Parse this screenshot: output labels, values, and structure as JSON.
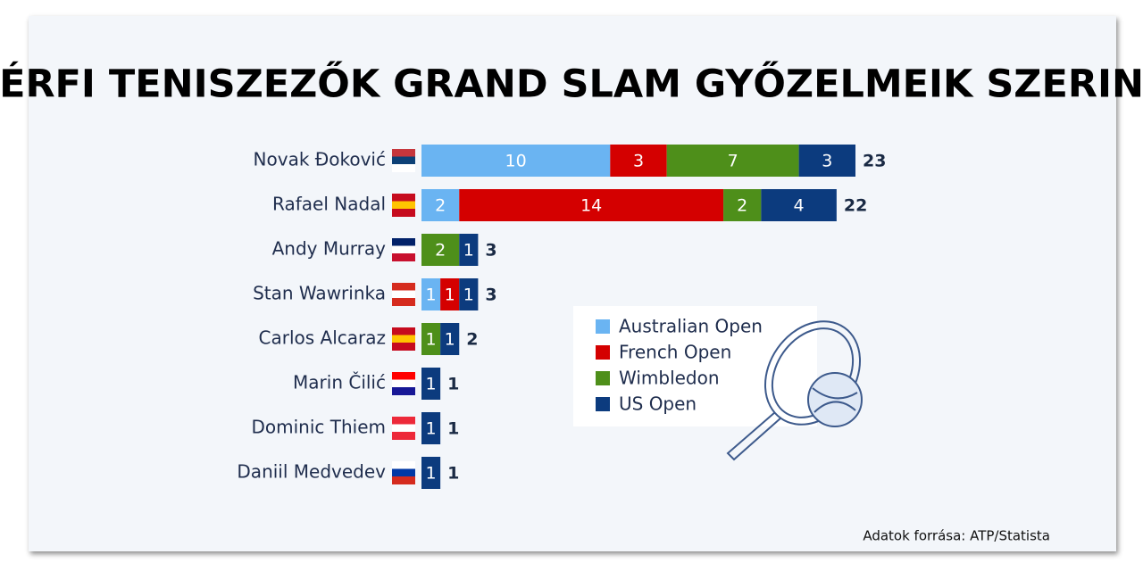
{
  "chart_data": {
    "type": "bar",
    "orientation": "horizontal",
    "stacked": true,
    "title": "FÉRFI TENISZEZŐK GRAND SLAM GYŐZELMEIK SZERINT",
    "categories": [
      "Novak Đoković",
      "Rafael Nadal",
      "Andy Murray",
      "Stan Wawrinka",
      "Carlos Alcaraz",
      "Marin Čilić",
      "Dominic Thiem",
      "Daniil Medvedev"
    ],
    "series": [
      {
        "name": "Australian Open",
        "color": "#6ab4f2",
        "values": [
          10,
          2,
          0,
          1,
          0,
          0,
          0,
          0
        ]
      },
      {
        "name": "French Open",
        "color": "#d40000",
        "values": [
          3,
          14,
          0,
          1,
          0,
          0,
          0,
          0
        ]
      },
      {
        "name": "Wimbledon",
        "color": "#4e8f1a",
        "values": [
          7,
          2,
          2,
          0,
          1,
          0,
          0,
          0
        ]
      },
      {
        "name": "US Open",
        "color": "#0c3b7e",
        "values": [
          3,
          4,
          1,
          1,
          1,
          1,
          1,
          1
        ]
      }
    ],
    "totals": [
      23,
      22,
      3,
      3,
      2,
      1,
      1,
      1
    ],
    "source": "Adatok forrása: ATP/Statista"
  }
}
